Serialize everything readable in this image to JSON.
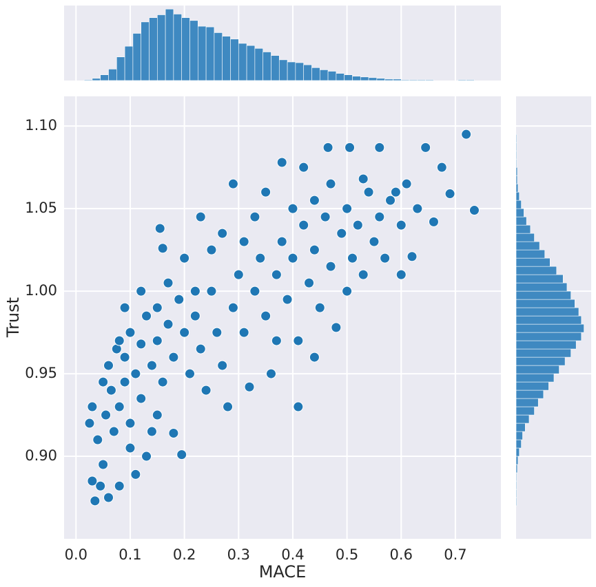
{
  "chart_data": [
    {
      "type": "scatter",
      "xlabel": "MACE",
      "ylabel": "Trust",
      "xlim": [
        -0.022,
        0.784
      ],
      "ylim": [
        0.85,
        1.118
      ],
      "xticks": [
        {
          "value": 0,
          "label": "0.0"
        },
        {
          "value": 0.1,
          "label": "0.1"
        },
        {
          "value": 0.2,
          "label": "0.2"
        },
        {
          "value": 0.3,
          "label": "0.3"
        },
        {
          "value": 0.4,
          "label": "0.4"
        },
        {
          "value": 0.5,
          "label": "0.5"
        },
        {
          "value": 0.6,
          "label": "0.6"
        },
        {
          "value": 0.7,
          "label": "0.7"
        }
      ],
      "yticks": [
        {
          "value": 0.9,
          "label": "0.90"
        },
        {
          "value": 0.95,
          "label": "0.95"
        },
        {
          "value": 1.0,
          "label": "1.00"
        },
        {
          "value": 1.05,
          "label": "1.05"
        },
        {
          "value": 1.1,
          "label": "1.10"
        }
      ],
      "grid": true,
      "series": [
        {
          "color": "#1f77b4",
          "x": [
            0.035,
            0.06,
            0.045,
            0.08,
            0.11,
            0.03,
            0.05,
            0.025,
            0.04,
            0.055,
            0.07,
            0.065,
            0.08,
            0.09,
            0.1,
            0.12,
            0.13,
            0.14,
            0.15,
            0.18,
            0.195,
            0.06,
            0.075,
            0.09,
            0.1,
            0.11,
            0.12,
            0.13,
            0.14,
            0.15,
            0.16,
            0.17,
            0.18,
            0.19,
            0.2,
            0.21,
            0.22,
            0.23,
            0.24,
            0.25,
            0.26,
            0.27,
            0.28,
            0.29,
            0.3,
            0.31,
            0.32,
            0.33,
            0.34,
            0.35,
            0.36,
            0.37,
            0.38,
            0.39,
            0.4,
            0.41,
            0.42,
            0.43,
            0.44,
            0.45,
            0.46,
            0.47,
            0.48,
            0.49,
            0.5,
            0.51,
            0.52,
            0.53,
            0.54,
            0.55,
            0.56,
            0.57,
            0.58,
            0.6,
            0.61,
            0.62,
            0.63,
            0.645,
            0.66,
            0.675,
            0.69,
            0.72,
            0.735,
            0.29,
            0.465,
            0.505,
            0.56,
            0.155,
            0.16,
            0.23,
            0.09,
            0.2,
            0.27,
            0.35,
            0.42,
            0.38,
            0.53,
            0.12,
            0.17,
            0.25,
            0.33,
            0.44,
            0.08,
            0.05,
            0.03,
            0.1,
            0.15,
            0.22,
            0.31,
            0.4,
            0.47,
            0.59,
            0.6,
            0.37,
            0.44,
            0.5,
            0.41
          ],
          "y": [
            0.873,
            0.875,
            0.882,
            0.882,
            0.889,
            0.885,
            0.895,
            0.92,
            0.91,
            0.925,
            0.915,
            0.94,
            0.93,
            0.945,
            0.92,
            0.935,
            0.9,
            0.915,
            0.925,
            0.914,
            0.901,
            0.955,
            0.965,
            0.96,
            0.975,
            0.95,
            0.968,
            0.985,
            0.955,
            0.97,
            0.945,
            0.98,
            0.96,
            0.995,
            0.975,
            0.95,
            0.985,
            0.965,
            0.94,
            1.0,
            0.975,
            0.955,
            0.93,
            0.99,
            1.01,
            0.975,
            0.942,
            1.0,
            1.02,
            0.985,
            0.95,
            1.01,
            1.03,
            0.995,
            1.02,
            0.97,
            1.04,
            1.005,
            1.025,
            0.99,
            1.045,
            1.015,
            0.978,
            1.035,
            1.05,
            1.02,
            1.04,
            1.01,
            1.06,
            1.03,
            1.045,
            1.02,
            1.055,
            1.04,
            1.065,
            1.021,
            1.05,
            1.087,
            1.042,
            1.075,
            1.059,
            1.095,
            1.049,
            1.065,
            1.087,
            1.087,
            1.087,
            1.038,
            1.026,
            1.045,
            0.99,
            1.02,
            1.035,
            1.06,
            1.075,
            1.078,
            1.068,
            1.0,
            1.005,
            1.025,
            1.045,
            1.055,
            0.97,
            0.945,
            0.93,
            0.905,
            0.99,
            1.0,
            1.03,
            1.05,
            1.065,
            1.06,
            1.01,
            0.97,
            0.96,
            1.0,
            0.93
          ]
        }
      ]
    },
    {
      "type": "histogram",
      "color": "#3f89c1",
      "bins": [
        0.015,
        0.03,
        0.045,
        0.06,
        0.075,
        0.09,
        0.105,
        0.12,
        0.135,
        0.15,
        0.165,
        0.18,
        0.195,
        0.21,
        0.225,
        0.24,
        0.255,
        0.27,
        0.285,
        0.3,
        0.315,
        0.33,
        0.345,
        0.36,
        0.375,
        0.39,
        0.405,
        0.42,
        0.435,
        0.45,
        0.465,
        0.48,
        0.495,
        0.51,
        0.525,
        0.54,
        0.555,
        0.57,
        0.585,
        0.6,
        0.615,
        0.63,
        0.645,
        0.66,
        0.675,
        0.69,
        0.705,
        0.72,
        0.735
      ],
      "counts": [
        1,
        3,
        8,
        16,
        33,
        48,
        66,
        82,
        88,
        92,
        100,
        93,
        88,
        84,
        76,
        75,
        67,
        62,
        58,
        52,
        49,
        45,
        40,
        35,
        29,
        26,
        25,
        22,
        18,
        15,
        13,
        10,
        8,
        6,
        5,
        4,
        3,
        2,
        2,
        1,
        1,
        1,
        1,
        0,
        0,
        0,
        1,
        1
      ],
      "ylim": [
        0,
        105
      ]
    },
    {
      "type": "histogram",
      "orientation": "horizontal",
      "color": "#3f89c1",
      "bins": [
        0.87,
        0.875,
        0.88,
        0.885,
        0.89,
        0.895,
        0.9,
        0.905,
        0.91,
        0.915,
        0.92,
        0.925,
        0.93,
        0.935,
        0.94,
        0.945,
        0.95,
        0.955,
        0.96,
        0.965,
        0.97,
        0.975,
        0.98,
        0.985,
        0.99,
        0.995,
        1.0,
        1.005,
        1.01,
        1.015,
        1.02,
        1.025,
        1.03,
        1.035,
        1.04,
        1.045,
        1.05,
        1.055,
        1.06,
        1.065,
        1.07,
        1.075,
        1.08,
        1.085,
        1.09,
        1.095
      ],
      "counts": [
        1,
        1,
        1,
        1,
        2,
        3,
        5,
        8,
        10,
        14,
        20,
        28,
        34,
        42,
        50,
        58,
        66,
        75,
        84,
        92,
        100,
        104,
        100,
        96,
        90,
        84,
        78,
        72,
        62,
        52,
        44,
        36,
        28,
        22,
        16,
        12,
        8,
        5,
        3,
        2,
        2,
        1,
        1,
        1,
        1
      ],
      "xlim": [
        0,
        115
      ]
    }
  ]
}
